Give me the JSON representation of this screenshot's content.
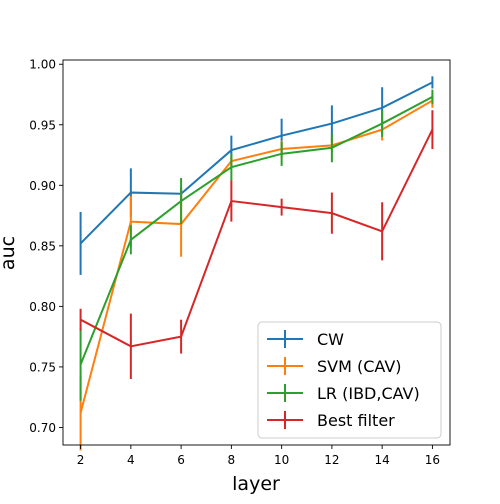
{
  "chart_data": {
    "type": "line",
    "title": "",
    "xlabel": "layer",
    "ylabel": "auc",
    "x": [
      2,
      4,
      6,
      8,
      10,
      12,
      14,
      16
    ],
    "xticks": [
      "2",
      "4",
      "6",
      "8",
      "10",
      "12",
      "14",
      "16"
    ],
    "yticks": [
      "0.70",
      "0.75",
      "0.80",
      "0.85",
      "0.90",
      "0.95",
      "1.00"
    ],
    "xlim": [
      1.3,
      16.7
    ],
    "ylim": [
      0.6855,
      1.0035
    ],
    "grid": false,
    "legend_position": "lower-right",
    "series": [
      {
        "name": "CW",
        "color": "#1f77b4",
        "values": [
          0.852,
          0.894,
          0.893,
          0.929,
          0.941,
          0.951,
          0.964,
          0.985
        ],
        "errors": [
          0.026,
          0.02,
          0.005,
          0.012,
          0.014,
          0.015,
          0.017,
          0.005
        ]
      },
      {
        "name": "SVM (CAV)",
        "color": "#ff7f0e",
        "values": [
          0.712,
          0.87,
          0.868,
          0.92,
          0.93,
          0.933,
          0.946,
          0.97
        ],
        "errors": [
          0.031,
          0.021,
          0.027,
          0.004,
          0.007,
          0.006,
          0.009,
          0.006
        ]
      },
      {
        "name": "LR (IBD,CAV)",
        "color": "#2ca02c",
        "values": [
          0.752,
          0.855,
          0.887,
          0.915,
          0.926,
          0.931,
          0.951,
          0.973
        ],
        "errors": [
          0.03,
          0.012,
          0.019,
          0.011,
          0.01,
          0.012,
          0.011,
          0.006
        ]
      },
      {
        "name": "Best filter",
        "color": "#d62728",
        "values": [
          0.789,
          0.767,
          0.775,
          0.887,
          0.882,
          0.877,
          0.862,
          0.946
        ],
        "errors": [
          0.009,
          0.027,
          0.014,
          0.017,
          0.007,
          0.017,
          0.024,
          0.016
        ]
      }
    ]
  }
}
